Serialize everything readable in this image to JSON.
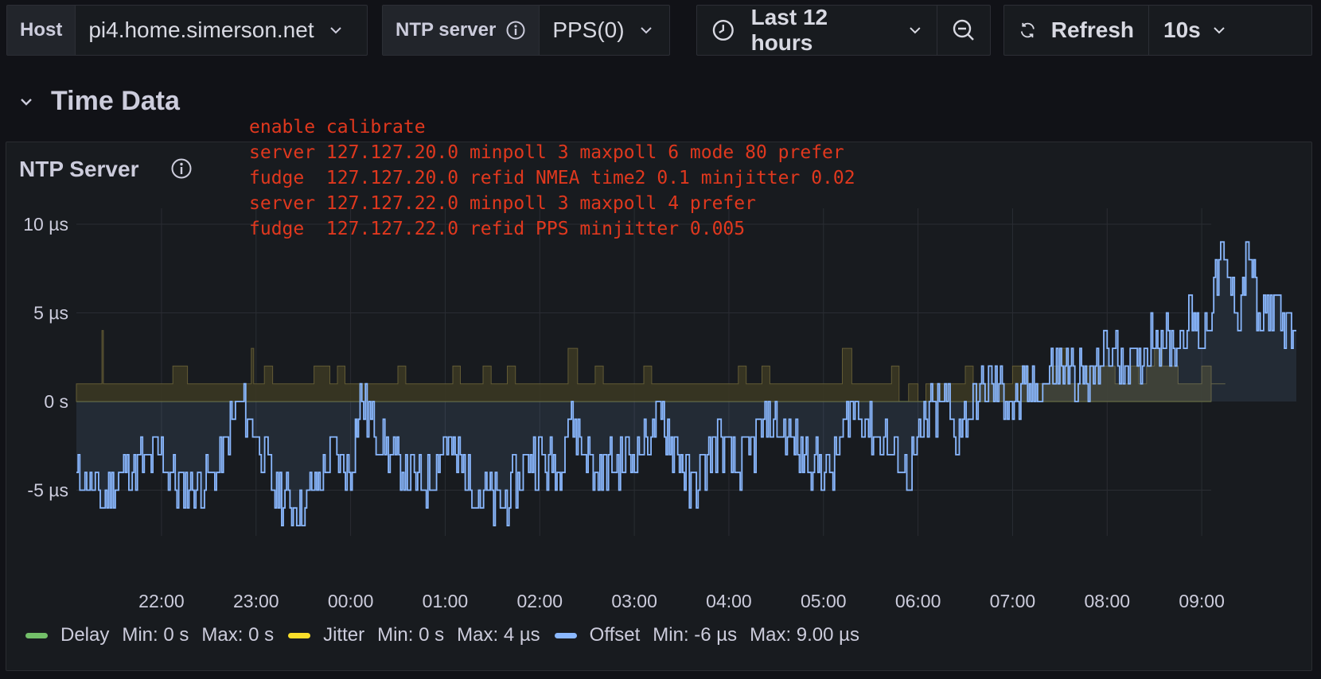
{
  "variables": {
    "host": {
      "label": "Host",
      "value": "pi4.home.simerson.net"
    },
    "ntp_server": {
      "label": "NTP server",
      "value": "PPS(0)"
    }
  },
  "time_controls": {
    "range_label": "Last 12 hours",
    "refresh_label": "Refresh",
    "interval": "10s"
  },
  "row": {
    "title": "Time Data"
  },
  "panel": {
    "title": "NTP Server",
    "annotation_lines": [
      "enable calibrate",
      "server 127.127.20.0 minpoll 3 maxpoll 6 mode 80 prefer",
      "fudge  127.127.20.0 refid NMEA time2 0.1 minjitter 0.02",
      "server 127.127.22.0 minpoll 3 maxpoll 4 prefer",
      "fudge  127.127.22.0 refid PPS minjitter 0.005"
    ]
  },
  "colors": {
    "delay": "#73bf69",
    "jitter": "#fade2a",
    "offset": "#8ab8ff",
    "background": "#111217",
    "panel": "#181b1f"
  },
  "legend": [
    {
      "name": "Delay",
      "min": "Min: 0 s",
      "max": "Max: 0 s",
      "color": "#73bf69"
    },
    {
      "name": "Jitter",
      "min": "Min: 0 s",
      "max": "Max: 4 µs",
      "color": "#fade2a"
    },
    {
      "name": "Offset",
      "min": "Min: -6 µs",
      "max": "Max: 9.00 µs",
      "color": "#8ab8ff"
    }
  ],
  "chart_data": {
    "type": "line",
    "ylim": [
      -8,
      10
    ],
    "y_ticks": [
      {
        "value": 10,
        "label": "10 µs"
      },
      {
        "value": 5,
        "label": "5 µs"
      },
      {
        "value": 0,
        "label": "0 s"
      },
      {
        "value": -5,
        "label": "-5 µs"
      }
    ],
    "x_range_hours": [
      21.1,
      9.1
    ],
    "x_ticks": [
      "22:00",
      "23:00",
      "00:00",
      "01:00",
      "02:00",
      "03:00",
      "04:00",
      "05:00",
      "06:00",
      "07:00",
      "08:00",
      "09:00"
    ],
    "grid": true,
    "series": [
      {
        "name": "Delay",
        "description": "constant zero",
        "values": [
          [
            21.1,
            0
          ],
          [
            9.1,
            0
          ]
        ]
      },
      {
        "name": "Jitter",
        "values": [
          [
            21.1,
            1
          ],
          [
            21.3,
            1
          ],
          [
            21.37,
            4
          ],
          [
            21.4,
            1
          ],
          [
            22.2,
            2
          ],
          [
            22.5,
            1
          ],
          [
            22.95,
            3
          ],
          [
            23.0,
            1
          ],
          [
            23.7,
            2
          ],
          [
            24.1,
            1
          ],
          [
            24.5,
            2
          ],
          [
            25.0,
            1
          ],
          [
            25.4,
            2
          ],
          [
            26.0,
            1
          ],
          [
            26.3,
            3
          ],
          [
            26.5,
            1
          ],
          [
            27.1,
            2
          ],
          [
            27.6,
            1
          ],
          [
            28.1,
            2
          ],
          [
            28.6,
            1
          ],
          [
            29.2,
            3
          ],
          [
            29.4,
            1
          ],
          [
            29.8,
            0
          ],
          [
            30.0,
            0
          ],
          [
            30.5,
            2
          ],
          [
            31.0,
            2
          ],
          [
            31.5,
            3
          ],
          [
            32.0,
            2
          ],
          [
            32.5,
            3
          ],
          [
            33.0,
            2
          ],
          [
            33.2,
            1
          ],
          [
            33.3,
            2
          ]
        ]
      },
      {
        "name": "Offset",
        "description": "noisy step signal trending from about -3 µs to +4 µs, spikes to -6 and 9",
        "values": [
          [
            21.1,
            -4
          ],
          [
            21.3,
            -5
          ],
          [
            21.37,
            -6
          ],
          [
            21.6,
            -4
          ],
          [
            22.0,
            -3
          ],
          [
            22.2,
            -5
          ],
          [
            22.6,
            -4
          ],
          [
            22.8,
            0
          ],
          [
            23.0,
            -2
          ],
          [
            23.2,
            -5
          ],
          [
            23.5,
            -6
          ],
          [
            23.8,
            -3
          ],
          [
            24.0,
            -4
          ],
          [
            24.1,
            0
          ],
          [
            24.4,
            -3
          ],
          [
            24.8,
            -5
          ],
          [
            25.0,
            -2
          ],
          [
            25.3,
            -5
          ],
          [
            25.6,
            -6
          ],
          [
            25.9,
            -3
          ],
          [
            26.2,
            -4
          ],
          [
            26.3,
            -1
          ],
          [
            26.6,
            -4
          ],
          [
            27.0,
            -3
          ],
          [
            27.3,
            -1
          ],
          [
            27.6,
            -5
          ],
          [
            27.9,
            -2
          ],
          [
            28.1,
            -4
          ],
          [
            28.4,
            -1
          ],
          [
            28.8,
            -3
          ],
          [
            29.1,
            -4
          ],
          [
            29.3,
            0
          ],
          [
            29.6,
            -2
          ],
          [
            29.9,
            -4
          ],
          [
            30.1,
            -1
          ],
          [
            30.3,
            0
          ],
          [
            30.4,
            -2
          ],
          [
            30.6,
            0
          ],
          [
            30.8,
            1
          ],
          [
            31.0,
            0
          ],
          [
            31.3,
            1
          ],
          [
            31.5,
            2
          ],
          [
            31.8,
            1
          ],
          [
            32.0,
            3
          ],
          [
            32.3,
            2
          ],
          [
            32.5,
            4
          ],
          [
            32.7,
            3
          ],
          [
            32.9,
            5
          ],
          [
            33.0,
            3
          ],
          [
            33.2,
            8
          ],
          [
            33.4,
            5
          ],
          [
            33.5,
            9
          ],
          [
            33.6,
            4
          ],
          [
            33.8,
            6
          ],
          [
            33.95,
            3
          ],
          [
            34.0,
            4
          ]
        ]
      }
    ]
  }
}
